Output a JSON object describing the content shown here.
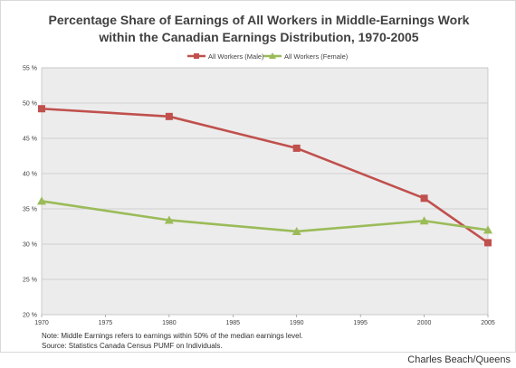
{
  "chart_data": {
    "type": "line",
    "title_lines": [
      "Percentage Share of Earnings of All Workers in Middle-Earnings Work",
      "within the Canadian Earnings Distribution, 1970-2005"
    ],
    "x": [
      1970,
      1980,
      1990,
      2000,
      2005
    ],
    "x_ticks": [
      "1970",
      "1975",
      "1980",
      "1985",
      "1990",
      "1995",
      "2000",
      "2005"
    ],
    "x_tick_values": [
      1970,
      1975,
      1980,
      1985,
      1990,
      1995,
      2000,
      2005
    ],
    "xlim": [
      1970,
      2005
    ],
    "y_ticks": [
      "20 %",
      "25 %",
      "30 %",
      "35 %",
      "40 %",
      "45 %",
      "50 %",
      "55 %"
    ],
    "y_tick_values": [
      20,
      25,
      30,
      35,
      40,
      45,
      50,
      55
    ],
    "ylim": [
      20,
      55
    ],
    "grid": true,
    "legend_position": "top-center",
    "series": [
      {
        "name": "All Workers (Male)",
        "color": "#c0504d",
        "marker": "square",
        "values": [
          49.2,
          48.1,
          43.6,
          36.5,
          30.2
        ]
      },
      {
        "name": "All Workers (Female)",
        "color": "#9bbb59",
        "marker": "triangle",
        "values": [
          36.1,
          33.4,
          31.8,
          33.3,
          32.0
        ]
      }
    ],
    "notes": [
      "Note: Middle Earnings refers to earnings within 50% of the median earnings level.",
      "Source: Statistics Canada Census PUMF on Individuals."
    ],
    "plot_background": "#ececec",
    "gridline_color": "#c8c8c8"
  },
  "credit": "Charles Beach/Queens"
}
